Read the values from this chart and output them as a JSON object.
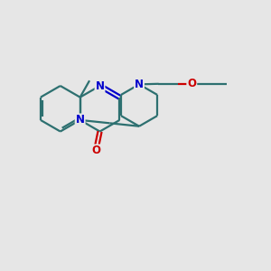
{
  "background_color": "#e6e6e6",
  "bond_color": "#2d7070",
  "n_color": "#0000cc",
  "o_color": "#cc0000",
  "line_width": 1.6,
  "figsize": [
    3.0,
    3.0
  ],
  "dpi": 100,
  "xlim": [
    0,
    10
  ],
  "ylim": [
    0,
    10
  ]
}
